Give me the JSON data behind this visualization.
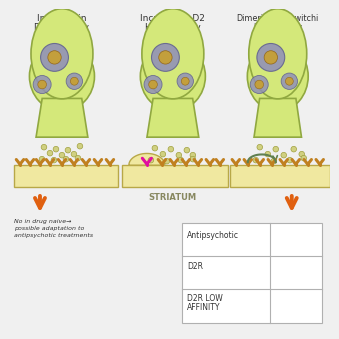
{
  "bg_color": "#f0f0f0",
  "neuron_fill": "#d4e87a",
  "neuron_fill2": "#c8e070",
  "neuron_edge": "#90a840",
  "nucleus_fill": "#9090b8",
  "nucleus_edge": "#606090",
  "organelle_fill": "#c8a030",
  "organelle_edge": "#906010",
  "striatum_fill": "#f0e8a0",
  "striatum_edge": "#b8a848",
  "receptor_fill": "#c08020",
  "receptor_edge": "#806010",
  "dopamine_color": "#d0d080",
  "dopamine_edge": "#a0a040",
  "antipsychotic_color": "#909090",
  "magenta_color": "#e010a0",
  "arrow_color": "#e06010",
  "curve_color": "#608050",
  "text_color": "#333333",
  "gray_text": "#707070",
  "title1_line1": "Increase in",
  "title1_line2": "D2R density",
  "title2_line1": "Increase in D2",
  "title2_line2": "High affinity",
  "title3_line1": "Dimerization-switchi",
  "title3_line2": "high affinity",
  "label_striatum": "STRIATUM",
  "label_no_drug1": "No in drug naive→",
  "label_no_drug2": "possible adaptation to",
  "label_no_drug3": "antipsychotic treatments",
  "legend_label1": "Antipsychotic",
  "legend_label2": "D2R",
  "legend_label3": "D2R LOW",
  "legend_label3b": "AFFINITY"
}
